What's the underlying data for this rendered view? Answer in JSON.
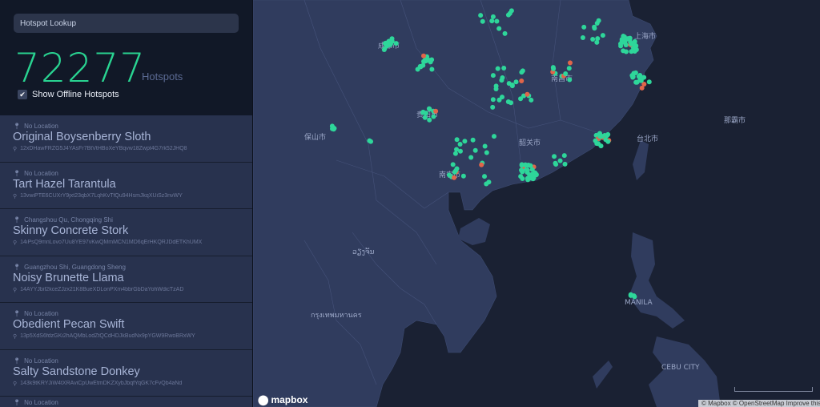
{
  "sidebar": {
    "search_placeholder": "Hotspot Lookup",
    "count": "72277",
    "count_label": "Hotspots",
    "show_offline_label": "Show Offline Hotspots",
    "show_offline_checked": true,
    "items": [
      {
        "location": "No Location",
        "name": "Original Boysenberry Sloth",
        "address": "12xDHawFRZG5J4YAsFr7BtVtHBoXeYBqvw18Zwpt4G7rk52JHQ8"
      },
      {
        "location": "No Location",
        "name": "Tart Hazel Tarantula",
        "address": "13vwiPTE6CUXrY9jxt23qbX7LqhKvTfQu94HsmJkqXUiSz3nvWY"
      },
      {
        "location": "Changshou Qu, Chongqing Shi",
        "name": "Skinny Concrete Stork",
        "address": "14iPsQ9mnLovo7Uu8YE97vKwQMmMCN1MD6qErHKQRJDdETKhUMX"
      },
      {
        "location": "Guangzhou Shi, Guangdong Sheng",
        "name": "Noisy Brunette Llama",
        "address": "14AYYJbif2kceZJzx21K8BueXDLonPXm4bbrGbDaYohWdicTzAD"
      },
      {
        "location": "No Location",
        "name": "Obedient Pecan Swift",
        "address": "13p5XdS6fdzGKi2hAQMbLodZtQCdHDJkBudNx9pYGW9RwoBRxWY"
      },
      {
        "location": "No Location",
        "name": "Salty Sandstone Donkey",
        "address": "143k9tKRYJiW4tXRAviCpUwEtmDKZXybJbqfYqGK7cFvQb4aNd"
      },
      {
        "location": "No Location",
        "name": "",
        "address": ""
      }
    ]
  },
  "map": {
    "labels": [
      "成都市",
      "贵阳市",
      "南宁市",
      "韶关市",
      "南昌市",
      "上海市",
      "台北市",
      "那霸市",
      "保山市",
      "ວຽງຈັນ",
      "กรุงเทพมหานคร",
      "MANILA",
      "CEBU CITY"
    ],
    "logo": "mapbox",
    "attribution": "© Mapbox © OpenStreetMap Improve this map",
    "colors": {
      "online": "#2ed69a",
      "offline": "#e0654a",
      "land": "#303c5e",
      "water": "#1a2133"
    }
  }
}
